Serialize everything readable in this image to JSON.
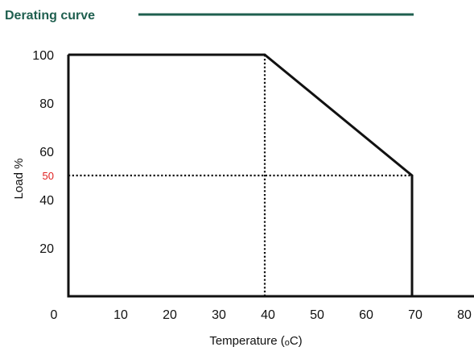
{
  "colors": {
    "title": "#1f5f4f",
    "highlight": "#e02020",
    "ink": "#111111"
  },
  "chart_data": {
    "type": "line",
    "title": "Derating curve",
    "xlabel_prefix": "Temperature (",
    "xlabel_unit_sup": "o",
    "xlabel_suffix": "C)",
    "ylabel": "Load %",
    "xlim": [
      0,
      80
    ],
    "ylim": [
      0,
      100
    ],
    "grid": false,
    "legend": "none",
    "x_ticks": [
      {
        "value": 0,
        "label": "0"
      },
      {
        "value": 10,
        "label": "10"
      },
      {
        "value": 20,
        "label": "20"
      },
      {
        "value": 30,
        "label": "30"
      },
      {
        "value": 40,
        "label": "40"
      },
      {
        "value": 50,
        "label": "50"
      },
      {
        "value": 60,
        "label": "60"
      },
      {
        "value": 70,
        "label": "70"
      },
      {
        "value": 80,
        "label": "80"
      }
    ],
    "y_ticks": [
      {
        "value": 20,
        "label": "20"
      },
      {
        "value": 40,
        "label": "40"
      },
      {
        "value": 60,
        "label": "60"
      },
      {
        "value": 80,
        "label": "80"
      },
      {
        "value": 100,
        "label": "100"
      }
    ],
    "highlight_tick": {
      "value": 50,
      "label": "50"
    },
    "series": [
      {
        "x": [
          0,
          40,
          70,
          70
        ],
        "y": [
          100,
          100,
          50,
          0
        ]
      }
    ],
    "reference_lines": [
      {
        "from": [
          40,
          0
        ],
        "to": [
          40,
          100
        ]
      },
      {
        "from": [
          0,
          50
        ],
        "to": [
          70,
          50
        ]
      }
    ]
  }
}
